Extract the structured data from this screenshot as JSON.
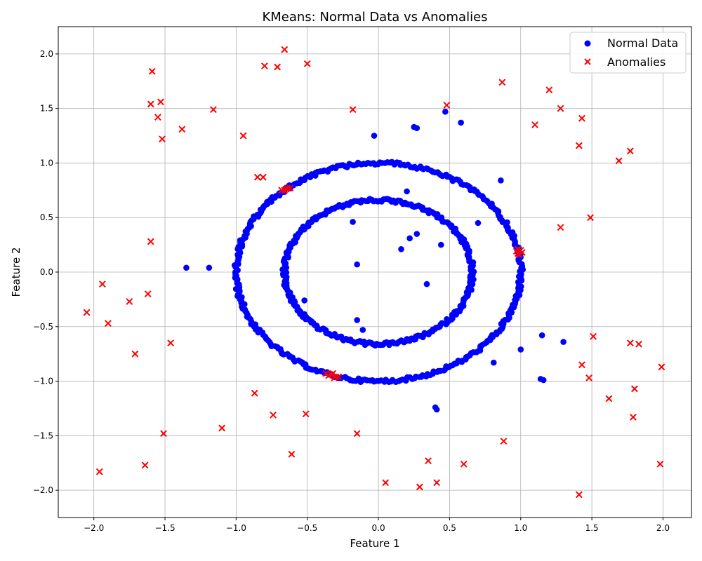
{
  "chart_data": {
    "type": "scatter",
    "title": "KMeans: Normal Data vs Anomalies",
    "xlabel": "Feature 1",
    "ylabel": "Feature 2",
    "xlim": [
      -2.25,
      2.2
    ],
    "ylim": [
      -2.25,
      2.25
    ],
    "xticks": [
      -2.0,
      -1.5,
      -1.0,
      -0.5,
      0.0,
      0.5,
      1.0,
      1.5,
      2.0
    ],
    "yticks": [
      -2.0,
      -1.5,
      -1.0,
      -0.5,
      0.0,
      0.5,
      1.0,
      1.5,
      2.0
    ],
    "xtick_labels": [
      "−2.0",
      "−1.5",
      "−1.0",
      "−0.5",
      "0.0",
      "0.5",
      "1.0",
      "1.5",
      "2.0"
    ],
    "ytick_labels": [
      "−2.0",
      "−1.5",
      "−1.0",
      "−0.5",
      "0.0",
      "0.5",
      "1.0",
      "1.5",
      "2.0"
    ],
    "grid": true,
    "legend_position": "top-right",
    "series": [
      {
        "name": "Normal Data",
        "marker": "circle",
        "color": "#0000ff",
        "rings": [
          {
            "radius": 1.0,
            "noise": 0.015,
            "count": 380
          },
          {
            "radius": 0.66,
            "noise": 0.015,
            "count": 300
          }
        ],
        "points": [
          [
            -0.03,
            1.25
          ],
          [
            0.25,
            1.33
          ],
          [
            0.27,
            1.32
          ],
          [
            0.47,
            1.47
          ],
          [
            0.58,
            1.37
          ],
          [
            0.86,
            0.84
          ],
          [
            0.7,
            0.45
          ],
          [
            0.2,
            0.74
          ],
          [
            0.27,
            0.35
          ],
          [
            0.22,
            0.31
          ],
          [
            0.16,
            0.21
          ],
          [
            0.44,
            0.25
          ],
          [
            -0.18,
            0.46
          ],
          [
            -0.15,
            0.07
          ],
          [
            0.34,
            -0.11
          ],
          [
            -0.15,
            -0.44
          ],
          [
            -0.11,
            -0.53
          ],
          [
            -0.52,
            -0.26
          ],
          [
            -1.35,
            0.04
          ],
          [
            -1.19,
            0.04
          ],
          [
            1.0,
            -0.71
          ],
          [
            1.15,
            -0.58
          ],
          [
            1.3,
            -0.64
          ],
          [
            0.81,
            -0.83
          ],
          [
            1.14,
            -0.98
          ],
          [
            1.16,
            -0.99
          ],
          [
            0.4,
            -1.24
          ],
          [
            0.41,
            -1.26
          ]
        ]
      },
      {
        "name": "Anomalies",
        "marker": "x",
        "color": "#ff0000",
        "points": [
          [
            -1.59,
            1.84
          ],
          [
            -1.6,
            1.54
          ],
          [
            -1.53,
            1.56
          ],
          [
            -1.55,
            1.42
          ],
          [
            -1.52,
            1.22
          ],
          [
            -1.38,
            1.31
          ],
          [
            -1.16,
            1.49
          ],
          [
            -0.95,
            1.25
          ],
          [
            -0.8,
            1.89
          ],
          [
            -0.71,
            1.88
          ],
          [
            -0.66,
            2.04
          ],
          [
            -0.5,
            1.91
          ],
          [
            -0.18,
            1.49
          ],
          [
            0.48,
            1.53
          ],
          [
            0.87,
            1.74
          ],
          [
            1.2,
            1.67
          ],
          [
            1.28,
            1.5
          ],
          [
            1.43,
            1.41
          ],
          [
            1.1,
            1.35
          ],
          [
            1.41,
            1.16
          ],
          [
            1.77,
            1.11
          ],
          [
            1.69,
            1.02
          ],
          [
            1.49,
            0.5
          ],
          [
            1.28,
            0.41
          ],
          [
            -0.85,
            0.87
          ],
          [
            -0.81,
            0.87
          ],
          [
            -0.68,
            0.75
          ],
          [
            -0.66,
            0.75
          ],
          [
            -0.64,
            0.77
          ],
          [
            -0.62,
            0.77
          ],
          [
            -0.65,
            0.76
          ],
          [
            0.97,
            0.19
          ],
          [
            0.98,
            0.21
          ],
          [
            0.99,
            0.16
          ],
          [
            1.01,
            0.18
          ],
          [
            0.98,
            0.17
          ],
          [
            1.0,
            0.2
          ],
          [
            -1.6,
            0.28
          ],
          [
            -1.94,
            -0.11
          ],
          [
            -2.05,
            -0.37
          ],
          [
            -1.75,
            -0.27
          ],
          [
            -1.62,
            -0.2
          ],
          [
            -1.9,
            -0.47
          ],
          [
            -1.71,
            -0.75
          ],
          [
            -1.46,
            -0.65
          ],
          [
            -0.37,
            -0.93
          ],
          [
            -0.35,
            -0.95
          ],
          [
            -0.33,
            -0.94
          ],
          [
            -0.31,
            -0.97
          ],
          [
            -0.3,
            -0.96
          ],
          [
            -0.28,
            -0.96
          ],
          [
            -0.32,
            -0.93
          ],
          [
            -0.87,
            -1.11
          ],
          [
            -0.74,
            -1.31
          ],
          [
            -0.51,
            -1.3
          ],
          [
            -1.1,
            -1.43
          ],
          [
            -1.51,
            -1.48
          ],
          [
            -0.15,
            -1.48
          ],
          [
            -0.61,
            -1.67
          ],
          [
            -1.64,
            -1.77
          ],
          [
            -1.96,
            -1.83
          ],
          [
            0.35,
            -1.73
          ],
          [
            0.6,
            -1.76
          ],
          [
            0.88,
            -1.55
          ],
          [
            0.05,
            -1.93
          ],
          [
            0.29,
            -1.97
          ],
          [
            0.41,
            -1.93
          ],
          [
            1.51,
            -0.59
          ],
          [
            1.77,
            -0.65
          ],
          [
            1.83,
            -0.66
          ],
          [
            1.43,
            -0.85
          ],
          [
            1.48,
            -0.97
          ],
          [
            1.99,
            -0.87
          ],
          [
            1.8,
            -1.07
          ],
          [
            1.62,
            -1.16
          ],
          [
            1.79,
            -1.33
          ],
          [
            1.98,
            -1.76
          ],
          [
            1.41,
            -2.04
          ]
        ]
      }
    ]
  }
}
